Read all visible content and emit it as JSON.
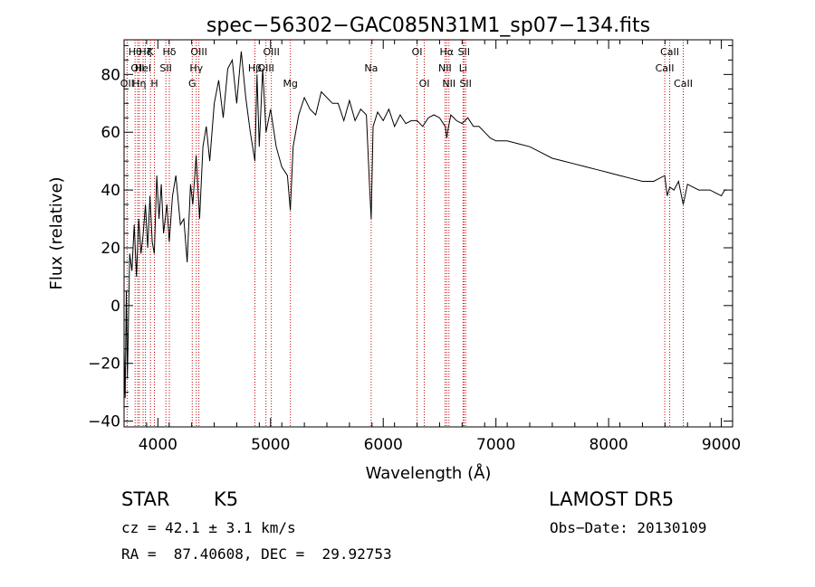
{
  "chart_data": {
    "type": "line",
    "title": "spec−56302−GAC085N31M1_sp07−134.fits",
    "xlabel": "Wavelength (Å)",
    "ylabel": "Flux (relative)",
    "xlim": [
      3700,
      9100
    ],
    "ylim": [
      -42,
      92
    ],
    "xticks": [
      4000,
      5000,
      6000,
      7000,
      8000,
      9000
    ],
    "yticks": [
      -40,
      -20,
      0,
      20,
      40,
      60,
      80
    ],
    "ytick_labels": [
      "−40",
      "−20",
      "0",
      "20",
      "40",
      "60",
      "80"
    ],
    "grid": false,
    "series": [
      {
        "x": [
          3700,
          3710,
          3720,
          3730,
          3750,
          3770,
          3790,
          3810,
          3830,
          3850,
          3870,
          3890,
          3910,
          3930,
          3950,
          3968,
          3990,
          4010,
          4030,
          4050,
          4080,
          4101,
          4130,
          4160,
          4200,
          4230,
          4260,
          4290,
          4310,
          4340,
          4370,
          4400,
          4430,
          4460,
          4500,
          4540,
          4580,
          4620,
          4660,
          4700,
          4740,
          4780,
          4820,
          4861,
          4880,
          4900,
          4930,
          4960,
          5000,
          5050,
          5100,
          5150,
          5175,
          5200,
          5250,
          5300,
          5350,
          5400,
          5450,
          5500,
          5550,
          5600,
          5650,
          5700,
          5750,
          5800,
          5850,
          5880,
          5893,
          5910,
          5950,
          6000,
          6050,
          6100,
          6150,
          6200,
          6250,
          6300,
          6350,
          6400,
          6450,
          6500,
          6550,
          6563,
          6580,
          6600,
          6650,
          6700,
          6750,
          6800,
          6850,
          6900,
          6950,
          7000,
          7100,
          7200,
          7300,
          7400,
          7500,
          7600,
          7700,
          7800,
          7900,
          8000,
          8100,
          8200,
          8300,
          8400,
          8498,
          8520,
          8542,
          8580,
          8620,
          8662,
          8700,
          8750,
          8800,
          8850,
          8900,
          8950,
          9000,
          9030,
          9050
        ],
        "y": [
          -15,
          -32,
          5,
          -25,
          18,
          12,
          28,
          10,
          30,
          18,
          25,
          35,
          20,
          38,
          22,
          18,
          45,
          30,
          42,
          25,
          35,
          22,
          38,
          45,
          28,
          30,
          15,
          42,
          35,
          52,
          30,
          55,
          62,
          50,
          70,
          78,
          65,
          82,
          85,
          70,
          88,
          72,
          60,
          50,
          80,
          55,
          82,
          60,
          68,
          55,
          48,
          45,
          33,
          55,
          66,
          72,
          68,
          66,
          74,
          72,
          70,
          70,
          64,
          71,
          64,
          68,
          66,
          40,
          30,
          62,
          67,
          64,
          68,
          62,
          66,
          63,
          64,
          64,
          62,
          65,
          66,
          65,
          62,
          58,
          62,
          66,
          64,
          63,
          65,
          62,
          62,
          60,
          58,
          57,
          57,
          56,
          55,
          53,
          51,
          50,
          49,
          48,
          47,
          46,
          45,
          44,
          43,
          43,
          45,
          38,
          41,
          40,
          43,
          35,
          42,
          41,
          40,
          40,
          40,
          39,
          38,
          40,
          40
        ]
      }
    ],
    "line_annotations": [
      {
        "x": 3727,
        "label": "OII",
        "row": 2
      },
      {
        "x": 3798,
        "label": "Hθ",
        "row": 0
      },
      {
        "x": 3820,
        "label": "OII",
        "row": 1
      },
      {
        "x": 3835,
        "label": "Hη",
        "row": 2
      },
      {
        "x": 3869,
        "label": "HeI",
        "row": 1
      },
      {
        "x": 3889,
        "label": "Hζ",
        "row": 0
      },
      {
        "x": 3934,
        "label": "K",
        "row": 0
      },
      {
        "x": 3969,
        "label": "H",
        "row": 2
      },
      {
        "x": 4071,
        "label": "SII",
        "row": 1
      },
      {
        "x": 4102,
        "label": "Hδ",
        "row": 0
      },
      {
        "x": 4305,
        "label": "G",
        "row": 2
      },
      {
        "x": 4341,
        "label": "Hγ",
        "row": 1
      },
      {
        "x": 4364,
        "label": "OIII",
        "row": 0
      },
      {
        "x": 4861,
        "label": "Hβ",
        "row": 1
      },
      {
        "x": 4959,
        "label": "OIII",
        "row": 1
      },
      {
        "x": 5007,
        "label": "OIII",
        "row": 0
      },
      {
        "x": 5176,
        "label": "Mg",
        "row": 2
      },
      {
        "x": 5893,
        "label": "Na",
        "row": 1
      },
      {
        "x": 6300,
        "label": "OI",
        "row": 0
      },
      {
        "x": 6364,
        "label": "OI",
        "row": 2
      },
      {
        "x": 6548,
        "label": "NII",
        "row": 1
      },
      {
        "x": 6563,
        "label": "Hα",
        "row": 0
      },
      {
        "x": 6583,
        "label": "NII",
        "row": 2
      },
      {
        "x": 6708,
        "label": "Li",
        "row": 1
      },
      {
        "x": 6716,
        "label": "SII",
        "row": 0
      },
      {
        "x": 6731,
        "label": "SII",
        "row": 2
      },
      {
        "x": 8498,
        "label": "CaII",
        "row": 1
      },
      {
        "x": 8542,
        "label": "CaII",
        "row": 0
      },
      {
        "x": 8662,
        "label": "CaII",
        "row": 2
      }
    ]
  },
  "info": {
    "class_label": "STAR",
    "subclass": "K5",
    "survey": "LAMOST DR5",
    "cz": "cz = 42.1 ± 3.1 km/s",
    "obs_date": "Obs−Date: 20130109",
    "coords": "RA =  87.40608, DEC =  29.92753"
  }
}
